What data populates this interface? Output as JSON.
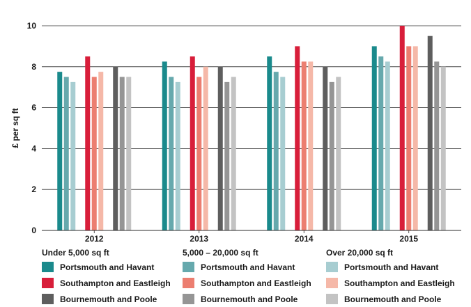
{
  "chart_data": {
    "type": "bar",
    "ylabel": "£ per sq ft",
    "ylim": [
      0,
      10
    ],
    "yticks": [
      0,
      2,
      4,
      6,
      8,
      10
    ],
    "categories": [
      "2012",
      "2013",
      "2014",
      "2015"
    ],
    "grid": true,
    "legend_position": "bottom",
    "series": [
      {
        "name": "Portsmouth and Havant",
        "group": "Under 5,000 sq ft",
        "color": "#1a8a8c",
        "values": [
          7.75,
          8.25,
          8.5,
          9.0
        ]
      },
      {
        "name": "Portsmouth and Havant",
        "group": "5,000 – 20,000 sq ft",
        "color": "#66a9ad",
        "values": [
          7.5,
          7.5,
          7.75,
          8.5
        ]
      },
      {
        "name": "Portsmouth and Havant",
        "group": "Over 20,000 sq ft",
        "color": "#a7cdd1",
        "values": [
          7.25,
          7.25,
          7.5,
          8.25
        ]
      },
      {
        "name": "Southampton and Eastleigh",
        "group": "Under 5,000 sq ft",
        "color": "#d81e3a",
        "values": [
          8.5,
          8.5,
          9.0,
          10.0
        ]
      },
      {
        "name": "Southampton and Eastleigh",
        "group": "5,000 – 20,000 sq ft",
        "color": "#ec7e70",
        "values": [
          7.5,
          7.5,
          8.25,
          9.0
        ]
      },
      {
        "name": "Southampton and Eastleigh",
        "group": "Over 20,000 sq ft",
        "color": "#f5b8a8",
        "values": [
          7.75,
          8.0,
          8.25,
          9.0
        ]
      },
      {
        "name": "Bournemouth and Poole",
        "group": "Under 5,000 sq ft",
        "color": "#5e5e5e",
        "values": [
          8.0,
          8.0,
          8.0,
          9.5
        ]
      },
      {
        "name": "Bournemouth and Poole",
        "group": "5,000 – 20,000 sq ft",
        "color": "#959595",
        "values": [
          7.5,
          7.25,
          7.25,
          8.25
        ]
      },
      {
        "name": "Bournemouth and Poole",
        "group": "Over 20,000 sq ft",
        "color": "#c3c3c3",
        "values": [
          7.5,
          7.5,
          7.5,
          8.0
        ]
      }
    ]
  },
  "legend": {
    "groups": [
      {
        "title": "Under 5,000 sq ft",
        "items": [
          {
            "label": "Portsmouth and Havant",
            "color": "#1a8a8c"
          },
          {
            "label": "Southampton and Eastleigh",
            "color": "#d81e3a"
          },
          {
            "label": "Bournemouth and Poole",
            "color": "#5e5e5e"
          }
        ]
      },
      {
        "title": "5,000 – 20,000 sq ft",
        "items": [
          {
            "label": "Portsmouth and Havant",
            "color": "#66a9ad"
          },
          {
            "label": "Southampton and Eastleigh",
            "color": "#ec7e70"
          },
          {
            "label": "Bournemouth and Poole",
            "color": "#959595"
          }
        ]
      },
      {
        "title": "Over 20,000 sq ft",
        "items": [
          {
            "label": "Portsmouth and Havant",
            "color": "#a7cdd1"
          },
          {
            "label": "Southampton and Eastleigh",
            "color": "#f5b8a8"
          },
          {
            "label": "Bournemouth and Poole",
            "color": "#c3c3c3"
          }
        ]
      }
    ]
  }
}
